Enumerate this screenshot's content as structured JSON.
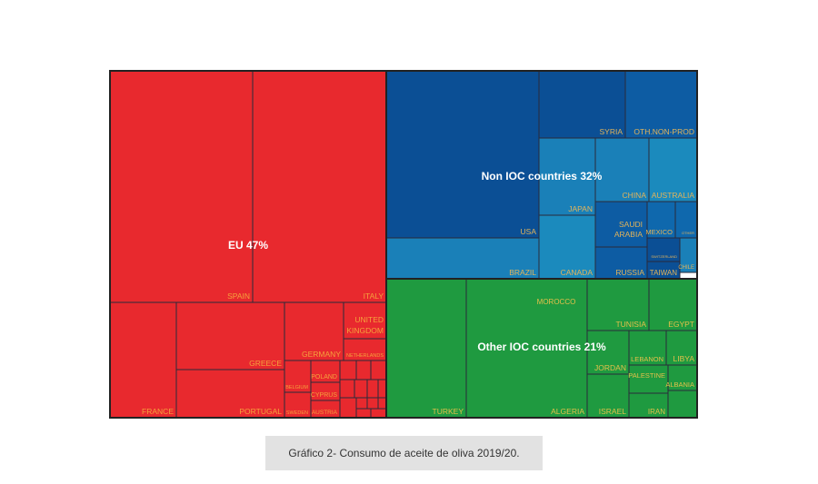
{
  "chart_data": {
    "type": "treemap",
    "groups": [
      {
        "label": "EU 47%",
        "name": "EU",
        "value_pct": 47,
        "color": "#e8292e",
        "label_color": "#f5a23c"
      },
      {
        "label": "Non IOC countries 32%",
        "name": "Non IOC countries",
        "value_pct": 32,
        "color": "#0d58a0",
        "label_color": "#e3b45a"
      },
      {
        "label": "Other IOC countries 21%",
        "name": "Other IOC countries",
        "value_pct": 21,
        "color": "#1f9a40",
        "label_color": "#e3c04a"
      }
    ],
    "cells": [
      {
        "group": 0,
        "label": "SPAIN",
        "color": "#e8292e"
      },
      {
        "group": 0,
        "label": "ITALY",
        "color": "#e8292e"
      },
      {
        "group": 0,
        "label": "FRANCE",
        "color": "#e8292e"
      },
      {
        "group": 0,
        "label": "GREECE",
        "color": "#e8292e"
      },
      {
        "group": 0,
        "label": "PORTUGAL",
        "color": "#e8292e"
      },
      {
        "group": 0,
        "label": "GERMANY",
        "color": "#e8292e"
      },
      {
        "group": 0,
        "label": "UNITED KINGDOM",
        "color": "#e8292e"
      },
      {
        "group": 0,
        "label": "NETHERLANDS",
        "color": "#e8292e"
      },
      {
        "group": 0,
        "label": "BELGIUM",
        "color": "#e8292e"
      },
      {
        "group": 0,
        "label": "SWEDEN",
        "color": "#e8292e"
      },
      {
        "group": 0,
        "label": "POLAND",
        "color": "#e8292e"
      },
      {
        "group": 0,
        "label": "CYPRUS",
        "color": "#e8292e"
      },
      {
        "group": 0,
        "label": "AUSTRIA",
        "color": "#e8292e"
      },
      {
        "group": 1,
        "label": "USA",
        "color": "#0b4f95"
      },
      {
        "group": 1,
        "label": "BRAZIL",
        "color": "#1a80b8"
      },
      {
        "group": 1,
        "label": "SYRIA",
        "color": "#0b4f95"
      },
      {
        "group": 1,
        "label": "OTH.NON-PROD",
        "color": "#0d5ca3"
      },
      {
        "group": 1,
        "label": "JAPAN",
        "color": "#1a80b8"
      },
      {
        "group": 1,
        "label": "CANADA",
        "color": "#1b8abd"
      },
      {
        "group": 1,
        "label": "CHINA",
        "color": "#1a80b8"
      },
      {
        "group": 1,
        "label": "AUSTRALIA",
        "color": "#1b8abd"
      },
      {
        "group": 1,
        "label": "SAUDI ARABIA",
        "color": "#0d5ca3"
      },
      {
        "group": 1,
        "label": "RUSSIA",
        "color": "#0d5ca3"
      },
      {
        "group": 1,
        "label": "MEXICO",
        "color": "#0f68ad"
      },
      {
        "group": 1,
        "label": "OTHER",
        "color": "#0f68ad"
      },
      {
        "group": 1,
        "label": "SWITZERLAND",
        "color": "#0b4f95"
      },
      {
        "group": 1,
        "label": "TAIWAN",
        "color": "#0b4f95"
      },
      {
        "group": 1,
        "label": "CHILE",
        "color": "#1a80b8"
      },
      {
        "group": 2,
        "label": "TURKEY",
        "color": "#1f9a40"
      },
      {
        "group": 2,
        "label": "ALGERIA",
        "color": "#1f9a40"
      },
      {
        "group": 2,
        "label": "MOROCCO",
        "color": "#1f9a40"
      },
      {
        "group": 2,
        "label": "TUNISIA",
        "color": "#1f9a40"
      },
      {
        "group": 2,
        "label": "EGYPT",
        "color": "#1f9a40"
      },
      {
        "group": 2,
        "label": "JORDAN",
        "color": "#1f9a40"
      },
      {
        "group": 2,
        "label": "ISRAEL",
        "color": "#1f9a40"
      },
      {
        "group": 2,
        "label": "LEBANON",
        "color": "#1f9a40"
      },
      {
        "group": 2,
        "label": "LIBYA",
        "color": "#1f9a40"
      },
      {
        "group": 2,
        "label": "PALESTINE",
        "color": "#1f9a40"
      },
      {
        "group": 2,
        "label": "ALBANIA",
        "color": "#1f9a40"
      },
      {
        "group": 2,
        "label": "IRAN",
        "color": "#1f9a40"
      }
    ]
  },
  "caption": "Gráfico 2- Consumo de aceite de oliva 2019/20."
}
